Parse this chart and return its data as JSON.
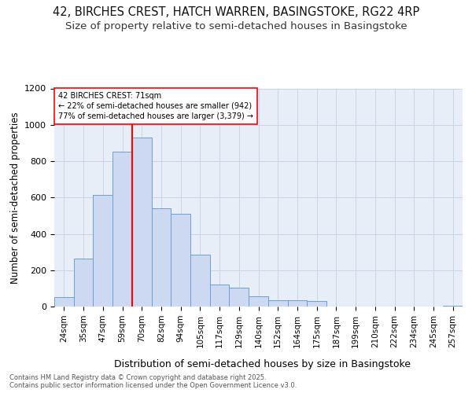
{
  "title1": "42, BIRCHES CREST, HATCH WARREN, BASINGSTOKE, RG22 4RP",
  "title2": "Size of property relative to semi-detached houses in Basingstoke",
  "xlabel": "Distribution of semi-detached houses by size in Basingstoke",
  "ylabel": "Number of semi-detached properties",
  "categories": [
    "24sqm",
    "35sqm",
    "47sqm",
    "59sqm",
    "70sqm",
    "82sqm",
    "94sqm",
    "105sqm",
    "117sqm",
    "129sqm",
    "140sqm",
    "152sqm",
    "164sqm",
    "175sqm",
    "187sqm",
    "199sqm",
    "210sqm",
    "222sqm",
    "234sqm",
    "245sqm",
    "257sqm"
  ],
  "values": [
    50,
    265,
    615,
    850,
    930,
    540,
    510,
    285,
    120,
    105,
    55,
    35,
    35,
    30,
    0,
    0,
    0,
    0,
    0,
    0,
    5
  ],
  "bar_color": "#ccd9f0",
  "bar_edge_color": "#6a9fd8",
  "property_line_x": 4.0,
  "annotation_text": "42 BIRCHES CREST: 71sqm\n← 22% of semi-detached houses are smaller (942)\n77% of semi-detached houses are larger (3,379) →",
  "ylim_max": 1200,
  "yticks": [
    0,
    200,
    400,
    600,
    800,
    1000,
    1200
  ],
  "grid_color": "#c8d4e8",
  "bg_color": "#e8eef8",
  "footnote": "Contains HM Land Registry data © Crown copyright and database right 2025.\nContains public sector information licensed under the Open Government Licence v3.0.",
  "title1_fontsize": 10.5,
  "title2_fontsize": 9.5,
  "xlabel_fontsize": 9,
  "ylabel_fontsize": 8.5,
  "annot_fontsize": 7,
  "tick_fontsize": 7.5,
  "ytick_fontsize": 8,
  "footnote_fontsize": 6
}
